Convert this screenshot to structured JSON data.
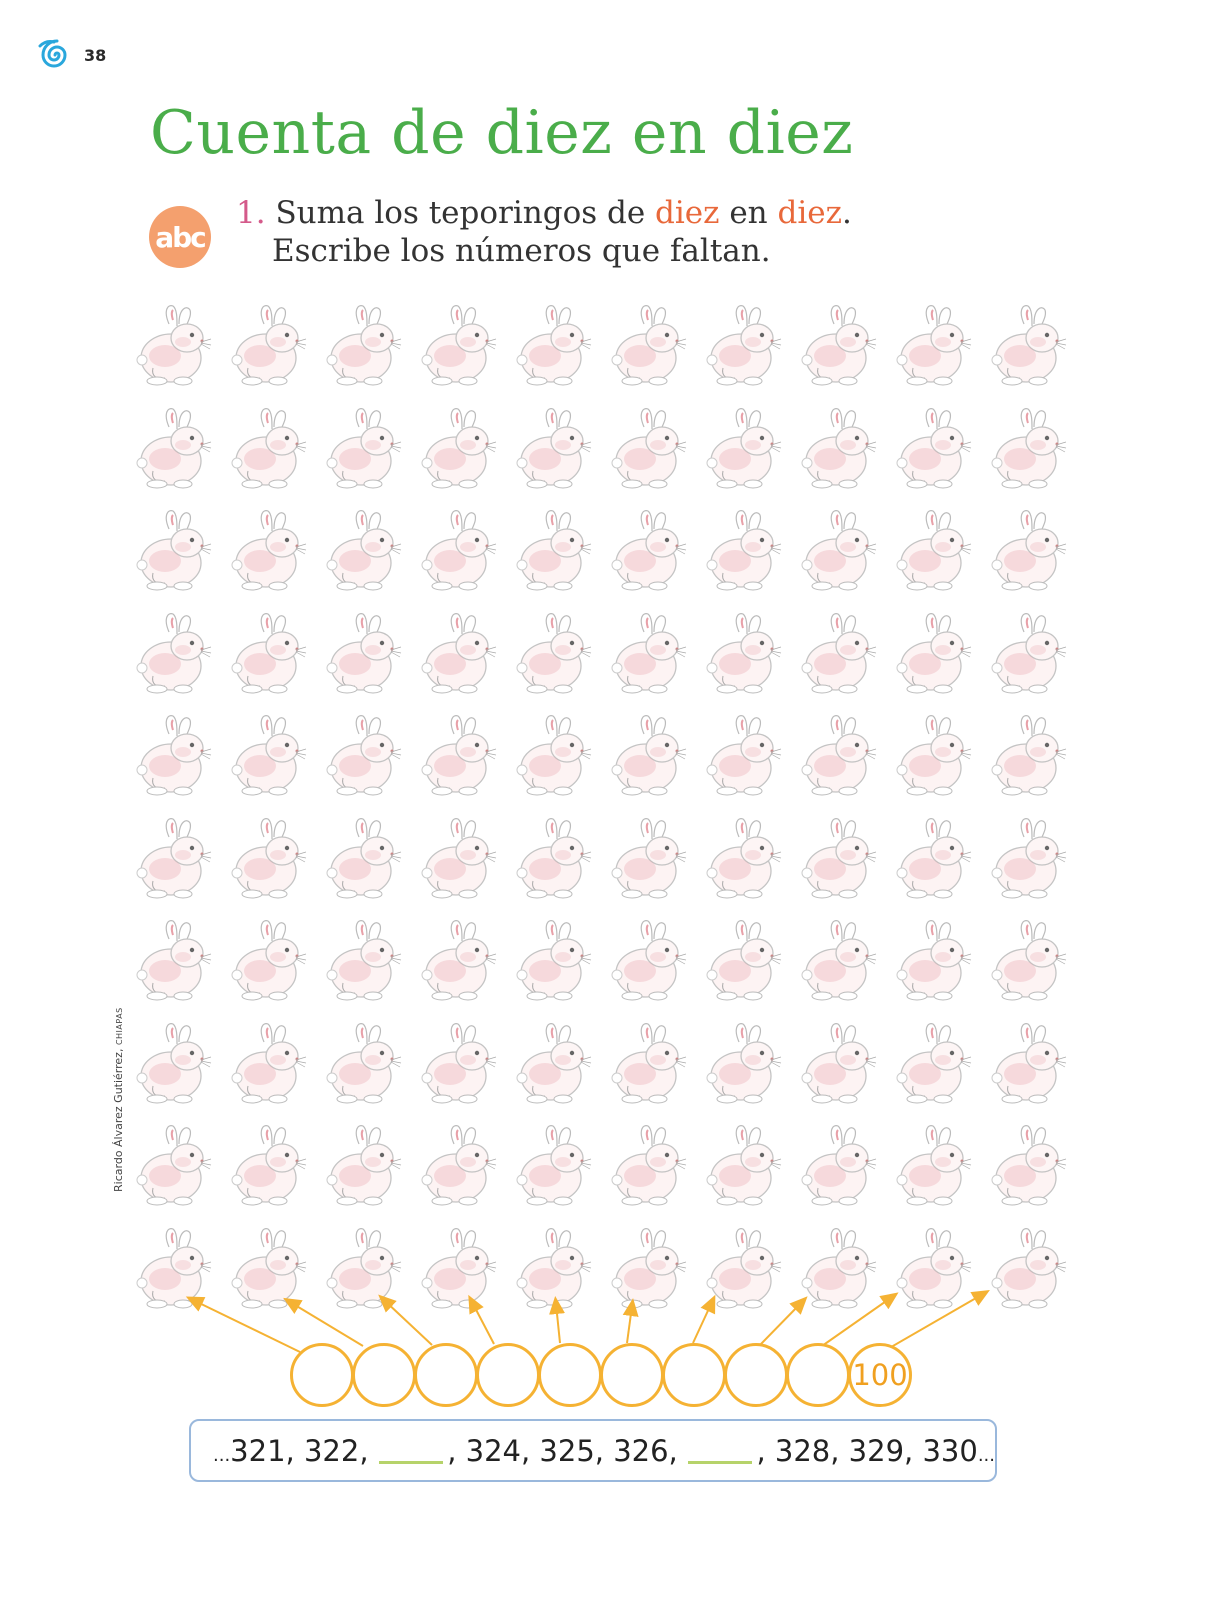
{
  "header": {
    "page_number": "38"
  },
  "title": "Cuenta de diez en diez",
  "activity": {
    "badge": "abc",
    "number": "1.",
    "line1_a": "Suma los teporingos de ",
    "line1_hl1": "diez",
    "line1_b": " en ",
    "line1_hl2": "diez",
    "line1_c": ".",
    "line2": "Escribe los números que faltan."
  },
  "credit": {
    "name": "Ricardo Álvarez Gutiérrez, ",
    "place": "CHIAPAS"
  },
  "rabbits": {
    "rows": 10,
    "cols": 10,
    "color": "#e8a0a8"
  },
  "tens_circles": [
    "",
    "",
    "",
    "",
    "",
    "",
    "",
    "",
    "",
    "100"
  ],
  "sequence": {
    "prefix": "...",
    "part1": "321, 322,",
    "part2": ", 324, 325, 326,",
    "part3": ", 328, 329, 330",
    "suffix": "..."
  },
  "colors": {
    "title": "#4aad4a",
    "highlight": "#e8683a",
    "number": "#d45a8a",
    "badge": "#f4a06e",
    "circles": "#f5b233",
    "box_border": "#9ab8dc",
    "blank_line": "#b6d36a"
  }
}
